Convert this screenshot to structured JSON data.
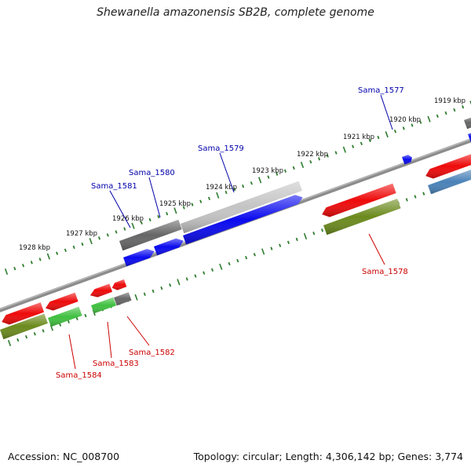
{
  "title": "Shewanella amazonensis SB2B, complete genome",
  "footer": {
    "accession": "Accession: NC_008700",
    "stats": "Topology: circular; Length: 4,306,142 bp; Genes: 3,774"
  },
  "colors": {
    "backbone": "#8c8c8c",
    "tick": "#2f7d2f",
    "label_top": "#0000aa",
    "label_bottom": "#cc0000",
    "gene_red": "#ee0a0a",
    "gene_olive": "#6b8a1d",
    "gene_green": "#3fbf3f",
    "gene_blue": "#0a0aee",
    "gene_steel": "#4a82b8",
    "gene_dark": "#666666",
    "gene_light": "#c4c4c4"
  },
  "kbp_labels": [
    "1928 kbp",
    "1927 kbp",
    "1926 kbp",
    "1925 kbp",
    "1924 kbp",
    "1923 kbp",
    "1922 kbp",
    "1921 kbp",
    "1920 kbp",
    "1919 kbp"
  ],
  "gene_labels": {
    "top": [
      "Sama_1581",
      "Sama_1580",
      "Sama_1579",
      "Sama_1577"
    ],
    "bottom": [
      "Sama_1584",
      "Sama_1583",
      "Sama_1582",
      "Sama_1578"
    ]
  }
}
